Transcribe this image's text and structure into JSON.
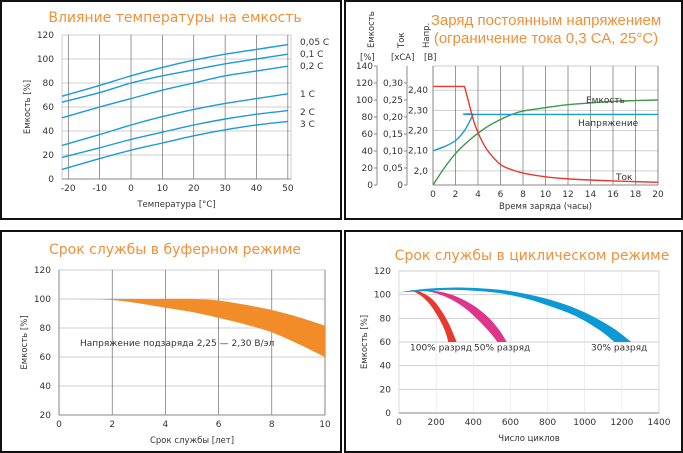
{
  "chart_data": [
    {
      "type": "line",
      "title": "Влияние температуры на емкость",
      "xlabel": "Температура [°C]",
      "ylabel": "Емкость [%]",
      "xlim": [
        -22,
        51
      ],
      "ylim": [
        0,
        120
      ],
      "grid": true,
      "xticks": [
        -20,
        -10,
        0,
        10,
        20,
        30,
        40,
        50
      ],
      "yticks": [
        0,
        20,
        40,
        60,
        80,
        100,
        120
      ],
      "x": [
        -22,
        -10,
        0,
        10,
        20,
        30,
        40,
        50
      ],
      "line_color": "#1a9bd7",
      "series": [
        {
          "name": "0,05 C",
          "values": [
            69,
            78,
            86,
            93,
            99,
            104,
            108,
            112
          ]
        },
        {
          "name": "0,1 C",
          "values": [
            64,
            72,
            80,
            86,
            91,
            96,
            100,
            104
          ]
        },
        {
          "name": "0,2 C",
          "values": [
            51,
            60,
            67,
            74,
            80,
            86,
            90,
            94
          ]
        },
        {
          "name": "1 C",
          "values": [
            28,
            37,
            45,
            52,
            58,
            63,
            67,
            71
          ]
        },
        {
          "name": "2 C",
          "values": [
            18,
            26,
            33,
            39,
            45,
            50,
            54,
            57
          ]
        },
        {
          "name": "3 C",
          "values": [
            8,
            17,
            24,
            30,
            36,
            41,
            45,
            48
          ]
        }
      ]
    },
    {
      "type": "line",
      "title": [
        "Заряд постоянным напряжением",
        "(ограничение тока 0,3 СА, 25°С)"
      ],
      "xlabel": "Время заряда (часы)",
      "axes": [
        {
          "name": "Емкость",
          "unit": "[%]",
          "ticks": [
            0,
            20,
            40,
            60,
            80,
            100,
            120,
            140
          ],
          "labels": [
            "0",
            "20",
            "40",
            "60",
            "80",
            "100",
            "120",
            "140"
          ],
          "lim": [
            0,
            140
          ]
        },
        {
          "name": "Ток",
          "unit": "[xCA]",
          "ticks": [
            0,
            0.05,
            0.1,
            0.15,
            0.2,
            0.25,
            0.3
          ],
          "labels": [
            "0",
            "0,05",
            "0,10",
            "0,15",
            "0,20",
            "0,25",
            "0,30"
          ],
          "lim": [
            0,
            0.35
          ]
        },
        {
          "name": "Напр.",
          "unit": "[B]",
          "ticks": [
            2.0,
            2.1,
            2.2,
            2.3,
            2.4
          ],
          "labels": [
            "2,0",
            "2,10",
            "2,20",
            "2,30",
            "2,40"
          ],
          "lim": [
            1.93,
            2.52
          ]
        }
      ],
      "xlim": [
        0,
        20
      ],
      "xticks": [
        0,
        2,
        4,
        6,
        8,
        10,
        12,
        14,
        16,
        18,
        20
      ],
      "grid": true,
      "series": [
        {
          "name": "Емкость",
          "axis": 0,
          "color": "#3a9a4a",
          "x": [
            0,
            1,
            2,
            3,
            4,
            5,
            6,
            7,
            8,
            10,
            12,
            14,
            16,
            18,
            20
          ],
          "values": [
            0,
            20,
            37,
            50,
            61,
            70,
            77,
            83,
            87,
            91,
            94.5,
            96.5,
            98.4,
            99.3,
            100
          ]
        },
        {
          "name": "Напряжение",
          "axis": 2,
          "color": "#1a9bd7",
          "x": [
            0,
            1,
            2,
            2.8,
            3.3,
            3.6,
            4,
            20
          ],
          "values": [
            2.1,
            2.12,
            2.15,
            2.2,
            2.25,
            2.28,
            2.28,
            2.28
          ]
        },
        {
          "name": "Ток",
          "axis": 1,
          "color": "#e8392f",
          "x": [
            0,
            2.8,
            3.2,
            3.6,
            4,
            4.5,
            5,
            6,
            7,
            8,
            10,
            12,
            16,
            20
          ],
          "values": [
            0.29,
            0.29,
            0.24,
            0.19,
            0.154,
            0.12,
            0.095,
            0.06,
            0.045,
            0.035,
            0.024,
            0.018,
            0.012,
            0.008
          ]
        }
      ]
    },
    {
      "type": "area",
      "title": "Срок службы в буферном режиме",
      "xlabel": "Срок службы [лет]",
      "ylabel": "Емкость [%]",
      "xlim": [
        0,
        10
      ],
      "ylim": [
        20,
        120
      ],
      "grid": true,
      "xticks": [
        0,
        2,
        4,
        6,
        8,
        10
      ],
      "yticks": [
        20,
        40,
        60,
        80,
        100,
        120
      ],
      "annotation": "Напряжение подзаряда 2,25 — 2,30 В/эл",
      "color": "#f28c28",
      "x": [
        0,
        1,
        2,
        3,
        4,
        5,
        6,
        7,
        8,
        9,
        10
      ],
      "upper": [
        100,
        100,
        100,
        100,
        100,
        100,
        99,
        96,
        92.4,
        87.5,
        81.6
      ],
      "lower": [
        100,
        99.8,
        99.3,
        97,
        94,
        91,
        87,
        82.5,
        77,
        69,
        60
      ]
    },
    {
      "type": "area",
      "title": "Срок службы в циклическом режиме",
      "xlabel": "Число циклов",
      "ylabel": "Емкость [%]",
      "xlim": [
        0,
        1400
      ],
      "ylim": [
        0,
        120
      ],
      "grid": true,
      "xticks": [
        0,
        200,
        400,
        600,
        800,
        1000,
        1200,
        1400
      ],
      "yticks": [
        0,
        20,
        40,
        60,
        80,
        100,
        120
      ],
      "series": [
        {
          "name": "100% разряд",
          "color": "#e8392f",
          "upper": {
            "x": [
              60,
              120,
              180,
              230,
              270,
              300,
              310
            ],
            "values": [
              104,
              102,
              96,
              86,
              75,
              64,
              60
            ]
          },
          "lower": {
            "x": [
              60,
              110,
              160,
              200,
              235,
              255,
              265
            ],
            "values": [
              104,
              100,
              93,
              84,
              74,
              66,
              60
            ]
          }
        },
        {
          "name": "50% разряд",
          "color": "#e0338a",
          "upper": {
            "x": [
              60,
              200,
              300,
              400,
              480,
              540,
              580
            ],
            "values": [
              104,
              103,
              99,
              91,
              81,
              70,
              60
            ]
          },
          "lower": {
            "x": [
              60,
              180,
              280,
              360,
              430,
              490,
              530
            ],
            "values": [
              104,
              102,
              96,
              88,
              78,
              68,
              60
            ]
          }
        },
        {
          "name": "30% разряд",
          "color": "#0b9ad6",
          "upper": {
            "x": [
              0,
              150,
              350,
              550,
              700,
              850,
              1000,
              1150,
              1250
            ],
            "values": [
              102,
              105,
              106,
              104,
              100,
              94,
              85,
              72,
              60
            ]
          },
          "lower": {
            "x": [
              0,
              150,
              300,
              500,
              650,
              800,
              950,
              1080,
              1160
            ],
            "values": [
              102,
              103,
              104,
              102,
              98,
              91,
              82,
              70,
              60
            ]
          }
        }
      ]
    }
  ]
}
